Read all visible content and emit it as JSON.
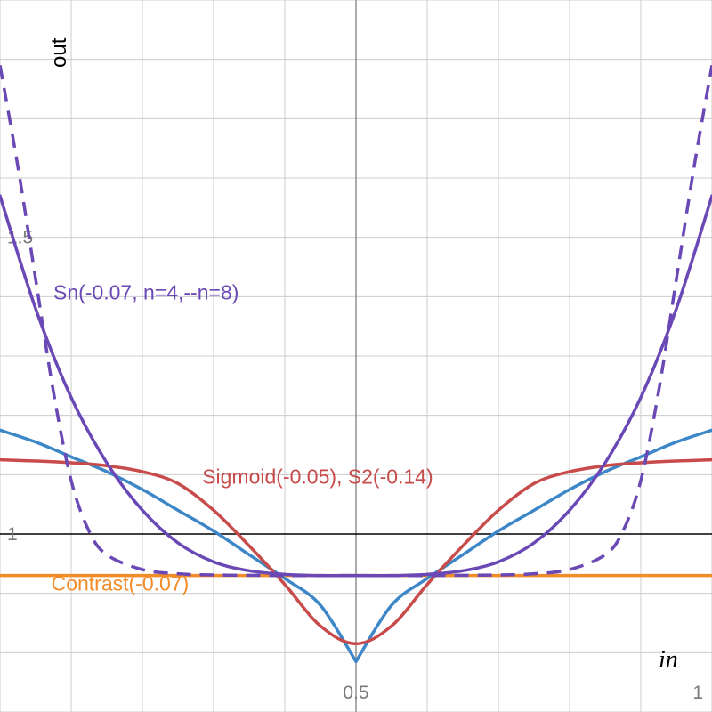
{
  "chart_data": {
    "type": "line",
    "xlabel": "in",
    "ylabel": "out",
    "xlim": [
      0,
      1
    ],
    "ylim": [
      0.7,
      1.9
    ],
    "grid": true,
    "x_ticks": [
      {
        "value": 0.5,
        "label": "0.5"
      },
      {
        "value": 1,
        "label": "1"
      }
    ],
    "y_ticks": [
      {
        "value": 1,
        "label": "1"
      },
      {
        "value": 1.5,
        "label": "1.5"
      }
    ],
    "x_grid_step": 0.1,
    "y_grid_step": 0.1,
    "reference_line": {
      "y": 1,
      "color": "#000000"
    },
    "labels": [
      {
        "text": "Sn(-0.07, n=4,--n=8)",
        "color": "#6a48b6",
        "x": 0.075,
        "y": 1.395
      },
      {
        "text": "Sigmoid(-0.05), S2(-0.14)",
        "color": "#c84b4b",
        "x": 0.284,
        "y": 1.085
      },
      {
        "text": "Contrast(-0.07)",
        "color": "#f28c28",
        "x": 0.072,
        "y": 0.905
      }
    ],
    "series": [
      {
        "color": "#f28c28",
        "dashed": false,
        "x": [
          0,
          1
        ],
        "y": [
          0.93,
          0.93
        ]
      },
      {
        "color": "#3d87c8",
        "dashed": false,
        "x": [
          0,
          0.05,
          0.1,
          0.15,
          0.2,
          0.25,
          0.3,
          0.35,
          0.4,
          0.45,
          0.5,
          0.55,
          0.6,
          0.65,
          0.7,
          0.75,
          0.8,
          0.85,
          0.9,
          0.95,
          1
        ],
        "y": [
          1.175,
          1.155,
          1.13,
          1.105,
          1.075,
          1.04,
          1.005,
          0.965,
          0.925,
          0.88,
          0.785,
          0.88,
          0.925,
          0.965,
          1.005,
          1.04,
          1.075,
          1.105,
          1.13,
          1.155,
          1.175
        ]
      },
      {
        "color": "#c84b4b",
        "dashed": false,
        "x": [
          0,
          0.05,
          0.1,
          0.15,
          0.2,
          0.25,
          0.3,
          0.35,
          0.4,
          0.45,
          0.5,
          0.55,
          0.6,
          0.65,
          0.7,
          0.75,
          0.8,
          0.85,
          0.9,
          0.95,
          1
        ],
        "y": [
          1.125,
          1.123,
          1.12,
          1.115,
          1.105,
          1.085,
          1.04,
          0.98,
          0.915,
          0.845,
          0.815,
          0.845,
          0.915,
          0.98,
          1.04,
          1.085,
          1.105,
          1.115,
          1.12,
          1.123,
          1.125
        ]
      },
      {
        "color": "#6a48b6",
        "dashed": false,
        "x": [
          0,
          0.05,
          0.1,
          0.15,
          0.2,
          0.25,
          0.3,
          0.35,
          0.4,
          0.45,
          0.5,
          0.55,
          0.6,
          0.65,
          0.7,
          0.75,
          0.8,
          0.85,
          0.9,
          0.95,
          1
        ],
        "y": [
          1.57,
          1.38,
          1.23,
          1.12,
          1.04,
          0.985,
          0.953,
          0.938,
          0.932,
          0.93,
          0.93,
          0.93,
          0.932,
          0.938,
          0.953,
          0.985,
          1.04,
          1.12,
          1.23,
          1.38,
          1.57
        ]
      },
      {
        "color": "#6a48b6",
        "dashed": true,
        "x": [
          0,
          0.025,
          0.05,
          0.075,
          0.1,
          0.125,
          0.15,
          0.2,
          0.25,
          0.3,
          0.4,
          0.5,
          0.6,
          0.7,
          0.75,
          0.8,
          0.85,
          0.875,
          0.9,
          0.925,
          0.95,
          0.975,
          1
        ],
        "y": [
          1.79,
          1.62,
          1.43,
          1.24,
          1.09,
          1.005,
          0.965,
          0.94,
          0.933,
          0.931,
          0.93,
          0.93,
          0.93,
          0.931,
          0.933,
          0.94,
          0.965,
          1.005,
          1.09,
          1.24,
          1.43,
          1.62,
          1.79
        ]
      }
    ]
  }
}
